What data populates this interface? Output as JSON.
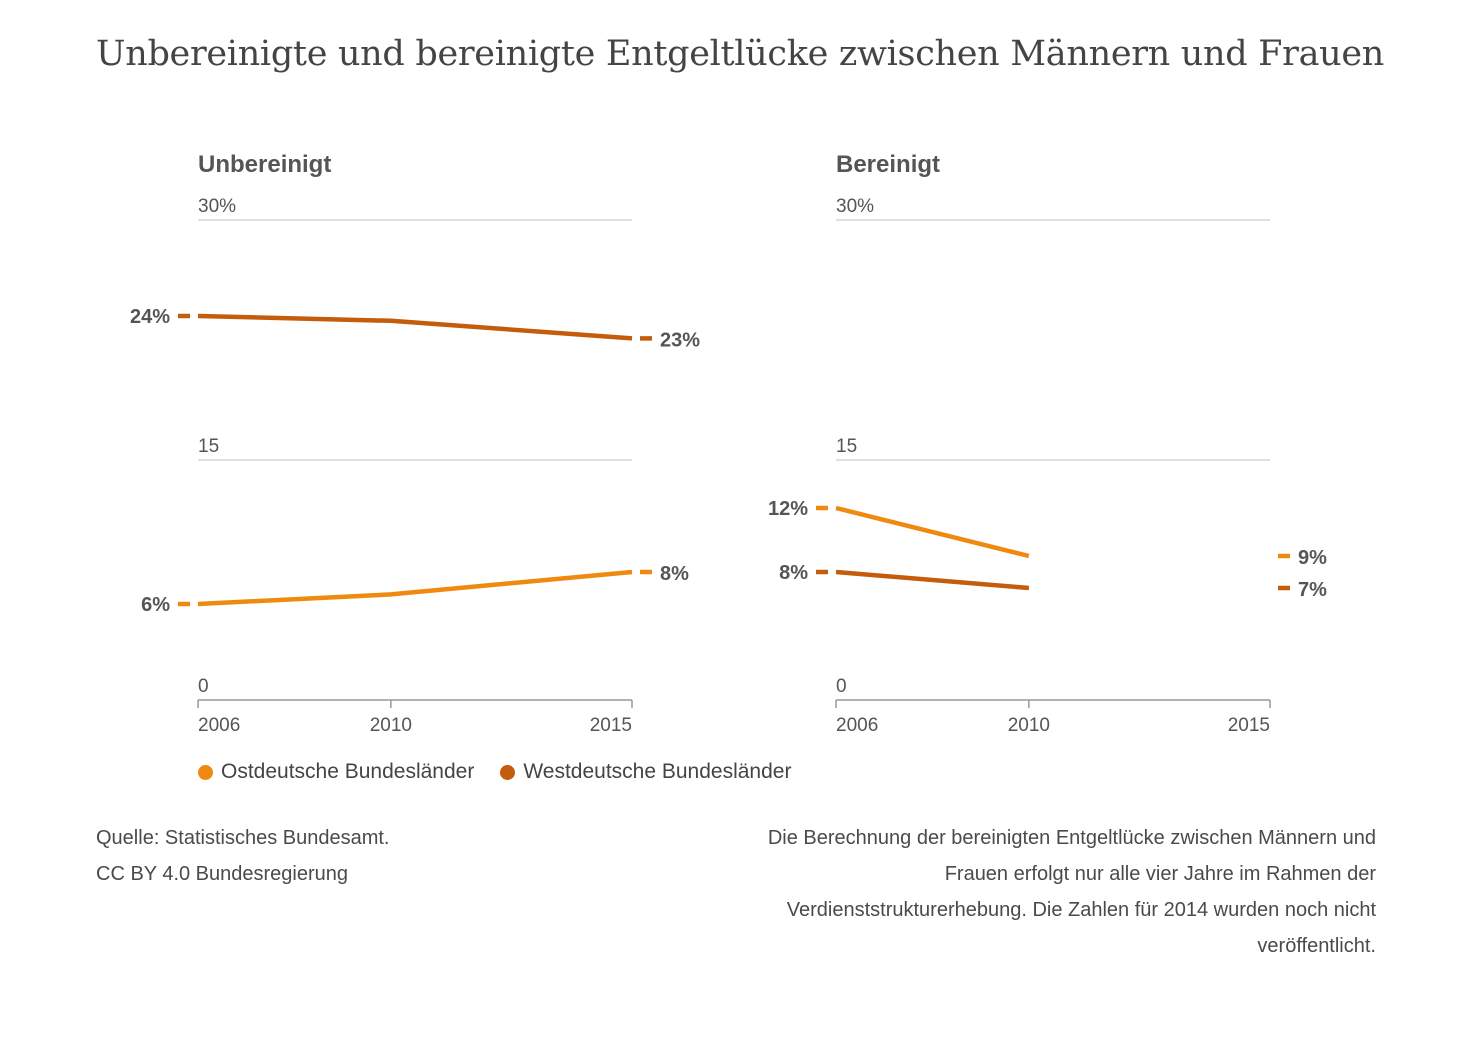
{
  "title": "Unbereinigte und bereinigte Entgeltlücke zwischen Männern und Frauen",
  "legend": [
    {
      "label": "Ostdeutsche Bundesländer",
      "color": "#f0890f"
    },
    {
      "label": "Westdeutsche Bundesländer",
      "color": "#c45c0c"
    }
  ],
  "source": {
    "line1": "Quelle: Statistisches Bundesamt.",
    "line2": "CC BY 4.0 Bundesregierung"
  },
  "note": "Die Berechnung der bereinigten Entgeltlücke zwischen Männern und Frauen erfolgt nur alle vier Jahre im Rahmen der Verdienststrukturerhebung. Die Zahlen für 2014 wurden noch nicht veröffentlicht.",
  "chart_data": [
    {
      "type": "line",
      "title": "Unbereinigt",
      "x": [
        2006,
        2010,
        2015
      ],
      "ylim": [
        0,
        30
      ],
      "y_ticks": [
        "30%",
        "15",
        "0"
      ],
      "series": [
        {
          "name": "Westdeutsche Bundesländer",
          "color": "#c45c0c",
          "values": [
            24,
            23.7,
            22.6
          ],
          "start_label": "24%",
          "end_label": "23%"
        },
        {
          "name": "Ostdeutsche Bundesländer",
          "color": "#f0890f",
          "values": [
            6,
            6.6,
            8
          ],
          "start_label": "6%",
          "end_label": "8%"
        }
      ]
    },
    {
      "type": "line",
      "title": "Bereinigt",
      "x": [
        2006,
        2010,
        2015
      ],
      "ylim": [
        0,
        30
      ],
      "y_ticks": [
        "30%",
        "15",
        "0"
      ],
      "series": [
        {
          "name": "Ostdeutsche Bundesländer",
          "color": "#f0890f",
          "values": [
            12,
            9,
            null
          ],
          "start_label": "12%",
          "end_label": "9%",
          "end_marker_value": 9
        },
        {
          "name": "Westdeutsche Bundesländer",
          "color": "#c45c0c",
          "values": [
            8,
            7,
            null
          ],
          "start_label": "8%",
          "end_label": "7%",
          "end_marker_value": 7
        }
      ]
    }
  ]
}
